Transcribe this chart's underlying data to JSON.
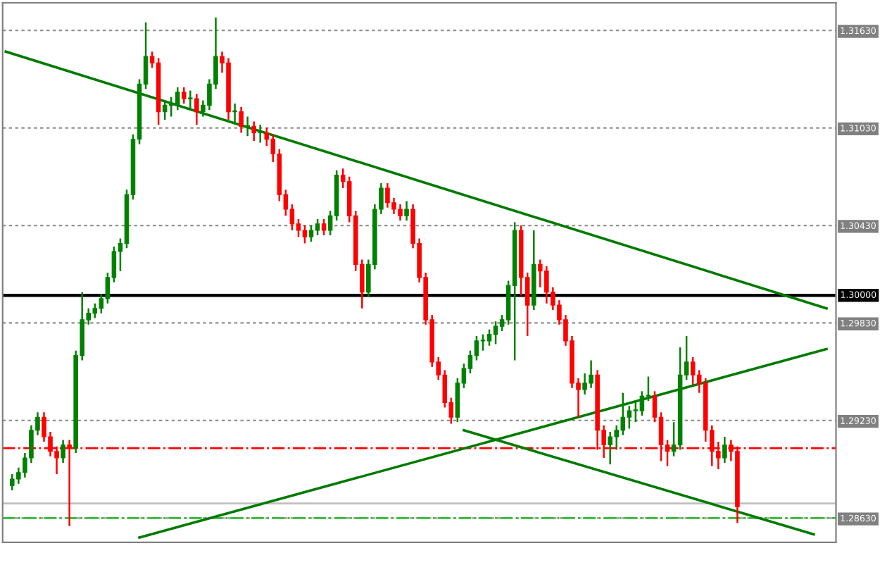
{
  "chart_data": {
    "type": "candlestick",
    "categories": [
      null,
      null,
      null,
      null,
      null,
      null,
      null,
      null,
      null,
      null,
      null,
      null,
      null,
      null,
      null,
      null,
      null,
      null,
      null,
      null,
      null,
      null,
      null,
      null,
      null,
      null,
      null,
      null,
      null,
      null,
      null,
      null,
      null,
      null,
      null,
      null,
      null,
      null,
      null,
      null,
      null,
      null,
      null,
      null,
      null,
      null,
      null,
      null,
      null,
      null,
      null,
      null,
      null,
      null,
      null,
      null,
      null,
      null,
      null,
      null,
      null,
      null,
      null,
      null,
      null,
      null,
      null,
      null,
      null,
      null,
      null,
      null,
      null,
      null,
      null,
      null,
      null,
      null,
      null,
      null,
      null,
      null,
      null,
      null,
      null,
      null,
      null,
      null,
      null,
      null,
      null,
      null,
      null,
      null,
      null,
      null,
      null,
      null,
      null,
      null,
      null,
      null,
      null,
      null,
      null,
      null,
      null,
      null,
      null,
      null,
      null,
      null,
      null,
      null,
      null,
      null,
      null,
      null,
      null,
      null,
      null,
      null,
      null,
      null,
      null,
      null,
      null,
      null,
      null,
      null,
      null
    ],
    "ohlc": [
      null,
      [
        1.2883,
        1.289,
        1.288,
        1.2887
      ],
      [
        1.2887,
        1.2894,
        1.2884,
        1.2891
      ],
      [
        1.2891,
        1.2903,
        1.2888,
        1.29
      ],
      [
        1.29,
        1.292,
        1.2897,
        1.2917
      ],
      [
        1.2917,
        1.2928,
        1.2914,
        1.2925
      ],
      [
        1.2925,
        1.2928,
        1.291,
        1.2913
      ],
      [
        1.2913,
        1.2916,
        1.2901,
        1.2904
      ],
      [
        1.2904,
        1.2907,
        1.289,
        1.29
      ],
      [
        1.29,
        1.2911,
        1.2897,
        1.2908
      ],
      [
        1.2908,
        1.2911,
        1.2858,
        1.2906
      ],
      [
        1.2906,
        1.2966,
        1.2903,
        1.2963
      ],
      [
        1.2963,
        1.3002,
        1.296,
        1.2985
      ],
      [
        1.2985,
        1.2992,
        1.2982,
        1.2989
      ],
      [
        1.2989,
        1.2995,
        1.2986,
        1.2992
      ],
      [
        1.2992,
        1.3001,
        1.2989,
        1.2998
      ],
      [
        1.2998,
        1.3014,
        1.2995,
        1.3011
      ],
      [
        1.3011,
        1.303,
        1.3008,
        1.3027
      ],
      [
        1.3027,
        1.3035,
        1.3015,
        1.3032
      ],
      [
        1.3032,
        1.3065,
        1.3029,
        1.3062
      ],
      [
        1.3062,
        1.3099,
        1.3059,
        1.3096
      ],
      [
        1.3096,
        1.3133,
        1.3093,
        1.313
      ],
      [
        1.313,
        1.3168,
        1.3127,
        1.3147
      ],
      [
        1.3147,
        1.315,
        1.314,
        1.3143
      ],
      [
        1.3143,
        1.3146,
        1.3105,
        1.3113
      ],
      [
        1.3113,
        1.312,
        1.3108,
        1.3117
      ],
      [
        1.3117,
        1.3122,
        1.311,
        1.3117
      ],
      [
        1.3117,
        1.3128,
        1.3114,
        1.3125
      ],
      [
        1.3125,
        1.3128,
        1.3118,
        1.3121
      ],
      [
        1.3121,
        1.3126,
        1.3114,
        1.3121
      ],
      [
        1.3121,
        1.3124,
        1.3105,
        1.3113
      ],
      [
        1.3113,
        1.312,
        1.311,
        1.3117
      ],
      [
        1.3117,
        1.3133,
        1.3114,
        1.313
      ],
      [
        1.313,
        1.3171,
        1.3127,
        1.3147
      ],
      [
        1.3147,
        1.315,
        1.3137,
        1.3143
      ],
      [
        1.3143,
        1.3146,
        1.3108,
        1.3113
      ],
      [
        1.3113,
        1.3118,
        1.3105,
        1.3113
      ],
      [
        1.3113,
        1.3116,
        1.31,
        1.3104
      ],
      [
        1.3104,
        1.311,
        1.3098,
        1.3104
      ],
      [
        1.3104,
        1.3107,
        1.3095,
        1.31
      ],
      [
        1.31,
        1.3105,
        1.3094,
        1.31
      ],
      [
        1.31,
        1.3103,
        1.3092,
        1.3096
      ],
      [
        1.3096,
        1.3099,
        1.3082,
        1.3087
      ],
      [
        1.3087,
        1.309,
        1.3058,
        1.3062
      ],
      [
        1.3062,
        1.3065,
        1.3049,
        1.3053
      ],
      [
        1.3053,
        1.3056,
        1.304,
        1.3044
      ],
      [
        1.3044,
        1.3047,
        1.3036,
        1.304
      ],
      [
        1.304,
        1.3043,
        1.3032,
        1.3036
      ],
      [
        1.3036,
        1.3043,
        1.3033,
        1.304
      ],
      [
        1.304,
        1.3047,
        1.3037,
        1.3044
      ],
      [
        1.3044,
        1.3047,
        1.3037,
        1.304
      ],
      [
        1.304,
        1.3052,
        1.3037,
        1.3049
      ],
      [
        1.3049,
        1.3077,
        1.3046,
        1.3074
      ],
      [
        1.3074,
        1.3078,
        1.3066,
        1.307
      ],
      [
        1.307,
        1.3073,
        1.3045,
        1.3049
      ],
      [
        1.3049,
        1.3052,
        1.3015,
        1.3019
      ],
      [
        1.3019,
        1.3022,
        1.2992,
        1.3002
      ],
      [
        1.3002,
        1.3022,
        1.2999,
        1.3019
      ],
      [
        1.3019,
        1.3056,
        1.3016,
        1.3053
      ],
      [
        1.3053,
        1.3069,
        1.305,
        1.3066
      ],
      [
        1.3066,
        1.3069,
        1.3054,
        1.3057
      ],
      [
        1.3057,
        1.306,
        1.305,
        1.3053
      ],
      [
        1.3053,
        1.3056,
        1.3046,
        1.3049
      ],
      [
        1.3049,
        1.3058,
        1.3046,
        1.3053
      ],
      [
        1.3053,
        1.3056,
        1.3029,
        1.3032
      ],
      [
        1.3032,
        1.3035,
        1.3008,
        1.3011
      ],
      [
        1.3011,
        1.3014,
        1.2982,
        1.2985
      ],
      [
        1.2985,
        1.2988,
        1.2956,
        1.2959
      ],
      [
        1.2959,
        1.2962,
        1.2948,
        1.2951
      ],
      [
        1.2951,
        1.2954,
        1.2931,
        1.2934
      ],
      [
        1.2934,
        1.2937,
        1.2921,
        1.2925
      ],
      [
        1.2925,
        1.2949,
        1.2922,
        1.2946
      ],
      [
        1.2946,
        1.2958,
        1.2943,
        1.2955
      ],
      [
        1.2955,
        1.2966,
        1.2952,
        1.2963
      ],
      [
        1.2963,
        1.2975,
        1.296,
        1.2972
      ],
      [
        1.2972,
        1.2976,
        1.2966,
        1.2972
      ],
      [
        1.2972,
        1.2979,
        1.2969,
        1.2976
      ],
      [
        1.2976,
        1.2984,
        1.297,
        1.2981
      ],
      [
        1.2981,
        1.2988,
        1.2978,
        1.2985
      ],
      [
        1.2985,
        1.3009,
        1.2982,
        1.3006
      ],
      [
        1.3006,
        1.3045,
        1.296,
        1.304
      ],
      [
        1.304,
        1.3043,
        1.3,
        1.3011
      ],
      [
        1.3011,
        1.3014,
        1.2975,
        1.2994
      ],
      [
        1.2994,
        1.304,
        1.2991,
        1.3019
      ],
      [
        1.3019,
        1.3022,
        1.3005,
        1.3015
      ],
      [
        1.3015,
        1.3018,
        1.2995,
        1.3002
      ],
      [
        1.3002,
        1.3005,
        1.2991,
        1.2994
      ],
      [
        1.2994,
        1.2997,
        1.2982,
        1.2985
      ],
      [
        1.2985,
        1.2988,
        1.2969,
        1.2972
      ],
      [
        1.2972,
        1.2975,
        1.2943,
        1.2946
      ],
      [
        1.2946,
        1.2949,
        1.2925,
        1.2942
      ],
      [
        1.2942,
        1.2952,
        1.2939,
        1.2946
      ],
      [
        1.2946,
        1.296,
        1.2943,
        1.2951
      ],
      [
        1.2951,
        1.2954,
        1.2905,
        1.2917
      ],
      [
        1.2917,
        1.292,
        1.29,
        1.2908
      ],
      [
        1.2908,
        1.2916,
        1.2896,
        1.2913
      ],
      [
        1.2913,
        1.292,
        1.2905,
        1.2917
      ],
      [
        1.2917,
        1.294,
        1.2914,
        1.2925
      ],
      [
        1.2925,
        1.2932,
        1.2918,
        1.2929
      ],
      [
        1.2929,
        1.2935,
        1.2922,
        1.2929
      ],
      [
        1.2929,
        1.2941,
        1.2926,
        1.2938
      ],
      [
        1.2938,
        1.295,
        1.2935,
        1.2938
      ],
      [
        1.2938,
        1.2941,
        1.2922,
        1.2925
      ],
      [
        1.2925,
        1.2928,
        1.2898,
        1.2908
      ],
      [
        1.2908,
        1.2911,
        1.2895,
        1.2904
      ],
      [
        1.2904,
        1.2922,
        1.2901,
        1.2908
      ],
      [
        1.2908,
        1.2968,
        1.2905,
        1.2951
      ],
      [
        1.2951,
        1.2975,
        1.2948,
        1.2959
      ],
      [
        1.2959,
        1.2962,
        1.2945,
        1.2951
      ],
      [
        1.2951,
        1.2954,
        1.294,
        1.2946
      ],
      [
        1.2946,
        1.2949,
        1.291,
        1.2917
      ],
      [
        1.2917,
        1.292,
        1.2895,
        1.2904
      ],
      [
        1.2904,
        1.291,
        1.2893,
        1.29
      ],
      [
        1.29,
        1.2913,
        1.2897,
        1.2908
      ],
      [
        1.2908,
        1.2911,
        1.2898,
        1.2904
      ],
      [
        1.2904,
        1.2907,
        1.286,
        1.287
      ],
      null,
      null,
      null,
      null,
      null,
      null,
      null,
      null,
      null,
      null,
      null,
      null,
      null,
      null,
      null
    ],
    "colors": [
      null,
      "#008000",
      "#008000",
      "#008000",
      "#008000",
      "#008000",
      "#ff0000",
      "#ff0000",
      "#ff0000",
      "#008000",
      "#ff0000",
      "#008000",
      "#008000",
      "#008000",
      "#008000",
      "#008000",
      "#008000",
      "#008000",
      "#008000",
      "#008000",
      "#008000",
      "#008000",
      "#008000",
      "#ff0000",
      "#ff0000",
      "#008000",
      "#008000",
      "#008000",
      "#ff0000",
      "#008000",
      "#ff0000",
      "#008000",
      "#008000",
      "#008000",
      "#ff0000",
      "#ff0000",
      "#008000",
      "#ff0000",
      "#008000",
      "#ff0000",
      "#008000",
      "#ff0000",
      "#ff0000",
      "#ff0000",
      "#ff0000",
      "#ff0000",
      "#ff0000",
      "#ff0000",
      "#008000",
      "#008000",
      "#ff0000",
      "#008000",
      "#008000",
      "#ff0000",
      "#ff0000",
      "#ff0000",
      "#ff0000",
      "#008000",
      "#008000",
      "#008000",
      "#ff0000",
      "#ff0000",
      "#ff0000",
      "#008000",
      "#ff0000",
      "#ff0000",
      "#ff0000",
      "#ff0000",
      "#ff0000",
      "#ff0000",
      "#ff0000",
      "#008000",
      "#008000",
      "#008000",
      "#008000",
      "#008000",
      "#008000",
      "#008000",
      "#008000",
      "#008000",
      "#008000",
      "#ff0000",
      "#ff0000",
      "#008000",
      "#ff0000",
      "#ff0000",
      "#ff0000",
      "#ff0000",
      "#ff0000",
      "#ff0000",
      "#ff0000",
      "#008000",
      "#008000",
      "#ff0000",
      "#ff0000",
      "#008000",
      "#008000",
      "#008000",
      "#008000",
      "#008000",
      "#008000",
      "#008000",
      "#ff0000",
      "#ff0000",
      "#ff0000",
      "#008000",
      "#008000",
      "#008000",
      "#ff0000",
      "#ff0000",
      "#ff0000",
      "#ff0000",
      "#ff0000",
      "#008000",
      "#ff0000",
      "#ff0000",
      null,
      null,
      null,
      null,
      null,
      null,
      null,
      null,
      null,
      null,
      null,
      null,
      null,
      null,
      null
    ],
    "series": [
      {
        "type": "line",
        "color": "#007a00",
        "values": [
          1.315,
          null,
          null,
          null,
          null,
          null,
          null,
          null,
          null,
          null,
          null,
          null,
          null,
          null,
          null,
          null,
          null,
          null,
          null,
          null,
          null,
          null,
          null,
          null,
          null,
          null,
          null,
          null,
          null,
          null,
          null,
          null,
          null,
          null,
          null,
          null,
          null,
          null,
          null,
          null,
          null,
          null,
          null,
          null,
          null,
          null,
          null,
          null,
          null,
          null,
          null,
          null,
          null,
          null,
          null,
          null,
          null,
          null,
          null,
          null,
          null,
          null,
          null,
          null,
          null,
          null,
          null,
          null,
          null,
          null,
          null,
          null,
          null,
          null,
          null,
          null,
          null,
          null,
          null,
          null,
          null,
          null,
          null,
          null,
          null,
          null,
          null,
          null,
          null,
          null,
          null,
          null,
          null,
          null,
          null,
          null,
          null,
          null,
          null,
          null,
          null,
          null,
          null,
          null,
          null,
          null,
          null,
          null,
          null,
          null,
          null,
          null,
          null,
          null,
          null,
          null,
          null,
          null,
          null,
          null,
          null,
          null,
          null,
          null,
          null,
          null,
          null,
          null,
          null,
          1.2992,
          null
        ]
      },
      {
        "type": "line",
        "color": "#007a00",
        "values": [
          null,
          null,
          null,
          null,
          null,
          null,
          null,
          null,
          null,
          null,
          null,
          null,
          null,
          null,
          null,
          null,
          null,
          null,
          null,
          null,
          null,
          1.2851,
          null,
          null,
          null,
          null,
          null,
          null,
          null,
          null,
          null,
          null,
          null,
          null,
          null,
          null,
          null,
          null,
          null,
          null,
          null,
          null,
          null,
          null,
          null,
          null,
          null,
          null,
          null,
          null,
          null,
          null,
          null,
          null,
          null,
          null,
          null,
          null,
          null,
          null,
          null,
          null,
          null,
          null,
          null,
          null,
          null,
          null,
          null,
          null,
          null,
          null,
          null,
          null,
          null,
          null,
          null,
          null,
          null,
          null,
          null,
          null,
          null,
          null,
          null,
          null,
          null,
          null,
          null,
          null,
          null,
          null,
          null,
          null,
          null,
          null,
          null,
          null,
          null,
          null,
          null,
          null,
          null,
          null,
          null,
          null,
          null,
          null,
          null,
          null,
          null,
          null,
          null,
          null,
          null,
          null,
          null,
          null,
          null,
          null,
          null,
          null,
          null,
          null,
          null,
          null,
          null,
          null,
          null,
          1.2967,
          null
        ]
      },
      {
        "type": "line",
        "color": "#007a00",
        "values": [
          null,
          null,
          null,
          null,
          null,
          null,
          null,
          null,
          null,
          null,
          null,
          null,
          null,
          null,
          null,
          null,
          null,
          null,
          null,
          null,
          null,
          null,
          null,
          null,
          null,
          null,
          null,
          null,
          null,
          null,
          null,
          null,
          null,
          null,
          null,
          null,
          null,
          null,
          null,
          null,
          null,
          null,
          null,
          null,
          null,
          null,
          null,
          null,
          null,
          null,
          null,
          null,
          null,
          null,
          null,
          null,
          null,
          null,
          null,
          null,
          null,
          null,
          null,
          null,
          null,
          null,
          null,
          null,
          null,
          null,
          null,
          null,
          1.2917,
          null,
          null,
          null,
          null,
          null,
          null,
          null,
          null,
          null,
          null,
          null,
          null,
          null,
          null,
          null,
          null,
          null,
          null,
          null,
          null,
          null,
          null,
          null,
          null,
          null,
          null,
          null,
          null,
          null,
          null,
          null,
          null,
          null,
          null,
          null,
          null,
          null,
          null,
          null,
          null,
          null,
          null,
          null,
          null,
          null,
          null,
          null,
          null,
          null,
          null,
          null,
          null,
          null,
          null,
          1.2853,
          null,
          null,
          null
        ]
      }
    ],
    "ref_lines": [
      {
        "axis": "y",
        "value": 1.3,
        "label": "1.30000",
        "color": "#000000",
        "line_style": "solid"
      },
      {
        "axis": "y",
        "value": 1.2906,
        "color": "#ff0000",
        "line_style": "dashdot"
      },
      {
        "axis": "y",
        "value": 1.2872,
        "color": "#c0c0c0",
        "line_style": "solid"
      },
      {
        "axis": "y",
        "value": 1.2863,
        "color": "#33bb33",
        "line_style": "dashdot"
      }
    ],
    "ylim": [
      1.2848,
      1.318
    ],
    "yticks": [
      {
        "value": 1.2863,
        "label": "1.28630"
      },
      {
        "value": 1.2923,
        "label": "1.29230"
      },
      {
        "value": 1.2983,
        "label": "1.29830"
      },
      {
        "value": 1.3043,
        "label": "1.30430"
      },
      {
        "value": 1.3103,
        "label": "1.31030"
      },
      {
        "value": 1.3163,
        "label": "1.31630"
      }
    ],
    "grid": "y",
    "tick_labels": "y"
  }
}
